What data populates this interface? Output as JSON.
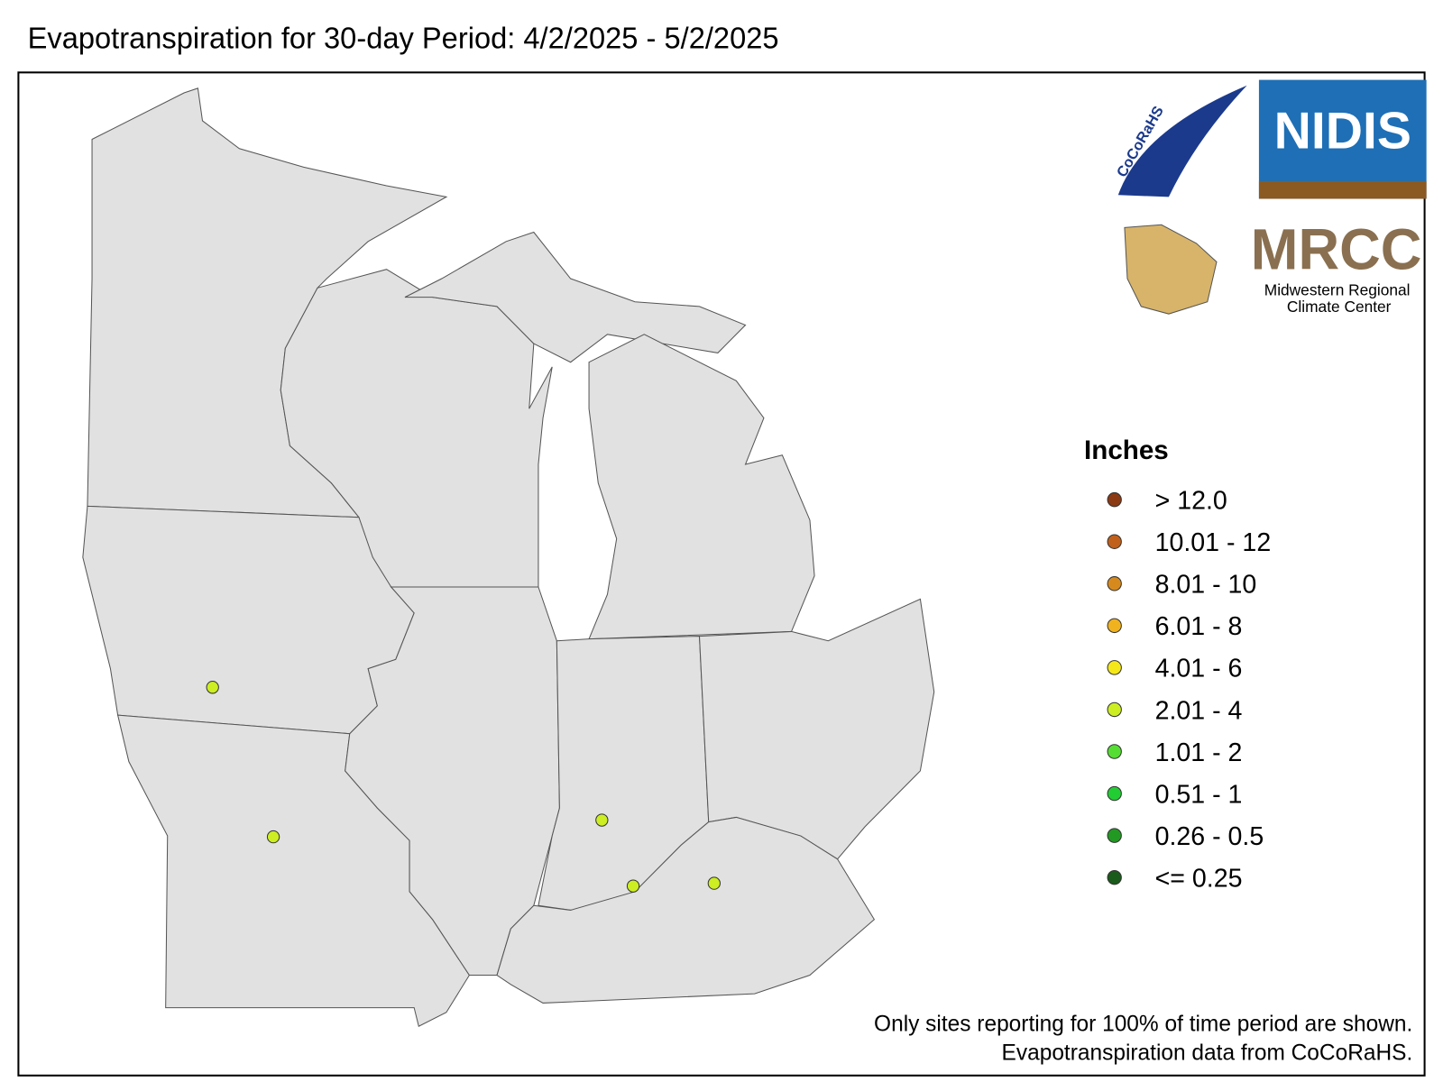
{
  "title": "Evapotranspiration for 30-day Period: 4/2/2025 - 5/2/2025",
  "logos": {
    "cocorahs": "CoCoRaHS",
    "nidis": "NIDIS",
    "mrcc": "MRCC",
    "mrcc_line1": "Midwestern Regional",
    "mrcc_line2": "Climate Center"
  },
  "legend": {
    "title": "Inches",
    "items": [
      {
        "label": "> 12.0",
        "color": "#8b3a14"
      },
      {
        "label": "10.01 - 12",
        "color": "#c0601a"
      },
      {
        "label": "8.01 - 10",
        "color": "#d68a1e"
      },
      {
        "label": "6.01 - 8",
        "color": "#f0b21e"
      },
      {
        "label": "4.01 - 6",
        "color": "#f5e81a"
      },
      {
        "label": "2.01 - 4",
        "color": "#ccee22"
      },
      {
        "label": "1.01 - 2",
        "color": "#55dd33"
      },
      {
        "label": "0.51 - 1",
        "color": "#22cc33"
      },
      {
        "label": "0.26 - 0.5",
        "color": "#229922"
      },
      {
        "label": "<= 0.25",
        "color": "#1a5a1a"
      }
    ]
  },
  "notes": [
    "Only sites reporting for 100% of time period are shown.",
    "Evapotranspiration data from CoCoRaHS."
  ]
}
